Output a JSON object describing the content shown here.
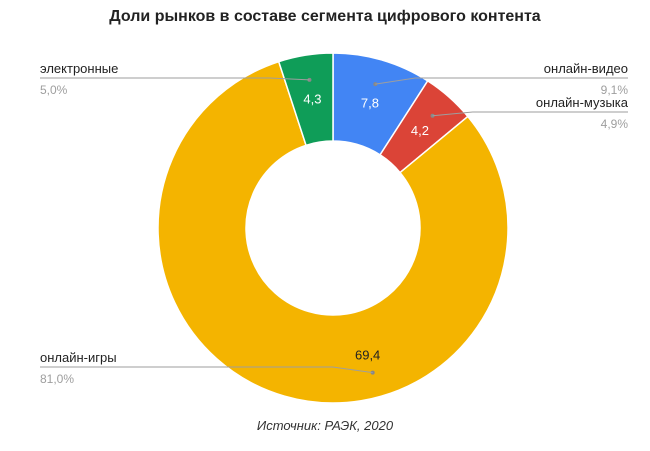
{
  "chart_data": {
    "type": "pie",
    "donut": true,
    "title": "Доли рынков в составе сегмента цифрового контента",
    "source": "Источник: РАЭК, 2020",
    "slices": [
      {
        "label": "онлайн-видео",
        "value": 7.8,
        "value_label": "7,8",
        "percent_label": "9,1%",
        "color": "#4285F4"
      },
      {
        "label": "онлайн-музыка",
        "value": 4.2,
        "value_label": "4,2",
        "percent_label": "4,9%",
        "color": "#DB4437"
      },
      {
        "label": "онлайн-игры",
        "value": 69.4,
        "value_label": "69,4",
        "percent_label": "81,0%",
        "color": "#F4B400"
      },
      {
        "label": "электронные",
        "value": 4.3,
        "value_label": "4,3",
        "percent_label": "5,0%",
        "color": "#0F9D58"
      }
    ]
  }
}
